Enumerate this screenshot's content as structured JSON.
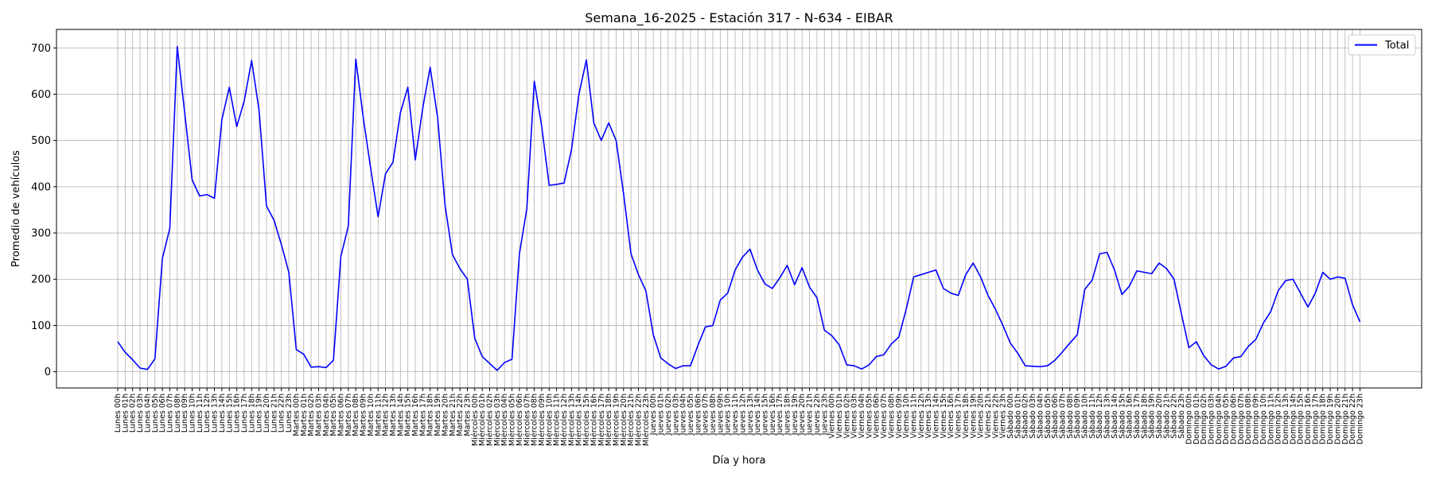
{
  "chart_data": {
    "type": "line",
    "title": "Semana_16-2025 - Estación 317 - N-634  - EIBAR",
    "xlabel": "Día y hora",
    "ylabel": "Promedio de vehículos",
    "ylim": [
      -35,
      740
    ],
    "yticks": [
      0,
      100,
      200,
      300,
      400,
      500,
      600,
      700
    ],
    "grid": true,
    "legend_placement": "top-right",
    "line_color": "#0000ff",
    "days": [
      "Lunes",
      "Martes",
      "Miércoles",
      "Jueves",
      "Viernes",
      "Sábado",
      "Domingo"
    ],
    "hour_labels": [
      "00h",
      "01h",
      "02h",
      "03h",
      "04h",
      "05h",
      "06h",
      "07h",
      "08h",
      "09h",
      "10h",
      "11h",
      "12h",
      "13h",
      "14h",
      "15h",
      "16h",
      "17h",
      "18h",
      "19h",
      "20h",
      "21h",
      "22h",
      "23h"
    ],
    "series": [
      {
        "name": "Total",
        "values": [
          65,
          42,
          26,
          8,
          5,
          28,
          245,
          310,
          703,
          560,
          415,
          380,
          383,
          375,
          545,
          615,
          530,
          585,
          673,
          565,
          358,
          328,
          275,
          215,
          48,
          38,
          10,
          11,
          9,
          25,
          250,
          315,
          676,
          550,
          440,
          335,
          428,
          453,
          560,
          615,
          458,
          570,
          658,
          550,
          360,
          253,
          223,
          200,
          72,
          33,
          18,
          3,
          20,
          27,
          255,
          353,
          628,
          530,
          403,
          405,
          408,
          480,
          600,
          674,
          538,
          500,
          538,
          500,
          385,
          255,
          210,
          175,
          80,
          30,
          17,
          7,
          13,
          13,
          57,
          97,
          100,
          155,
          170,
          220,
          248,
          265,
          220,
          190,
          180,
          203,
          230,
          188,
          225,
          183,
          160,
          90,
          78,
          58,
          15,
          13,
          6,
          15,
          33,
          37,
          60,
          75,
          135,
          205,
          210,
          215,
          220,
          180,
          170,
          165,
          210,
          235,
          205,
          165,
          135,
          100,
          62,
          40,
          13,
          12,
          11,
          13,
          25,
          43,
          62,
          80,
          178,
          198,
          255,
          258,
          220,
          167,
          185,
          218,
          215,
          212,
          235,
          223,
          200,
          125,
          52,
          65,
          35,
          15,
          6,
          12,
          30,
          33,
          55,
          70,
          105,
          130,
          175,
          197,
          200,
          170,
          140,
          170,
          215,
          200,
          205,
          202,
          145,
          108
        ]
      }
    ]
  }
}
